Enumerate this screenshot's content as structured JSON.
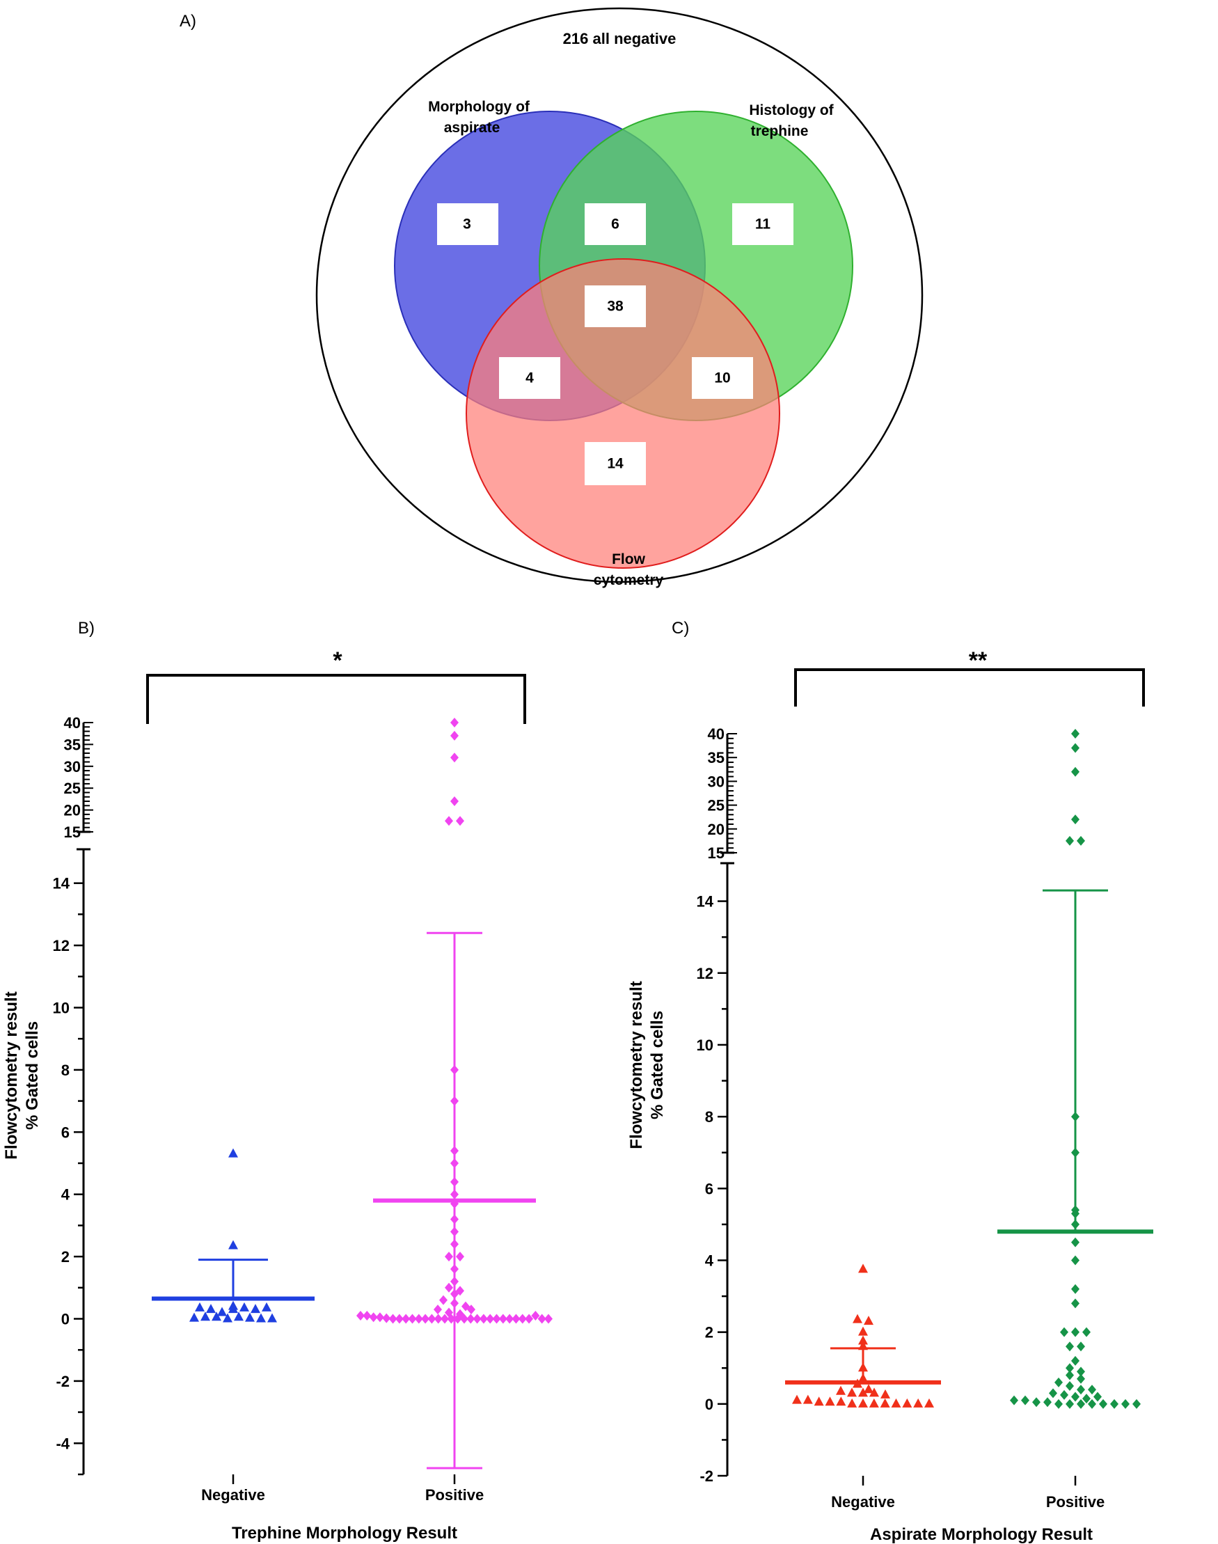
{
  "panel_a": {
    "label": "A)",
    "outer_label": "216 all negative",
    "circles": [
      {
        "name": "Morphology of aspirate",
        "label_lines": [
          "Morphology of",
          "aspirate"
        ],
        "fill": "#4a4ee0",
        "stroke": "#2a2fb8"
      },
      {
        "name": "Histology of trephine",
        "label_lines": [
          "Histology of",
          "trephine"
        ],
        "fill": "#59d35a",
        "stroke": "#2fb02f"
      },
      {
        "name": "Flow cytometry",
        "label_lines": [
          "Flow",
          "cytometry"
        ],
        "fill": "#ff7f78",
        "stroke": "#e01d1d"
      }
    ],
    "regions": [
      {
        "key": "aspirate_only",
        "value": "3"
      },
      {
        "key": "aspirate_trephine",
        "value": "6"
      },
      {
        "key": "trephine_only",
        "value": "11"
      },
      {
        "key": "all_three",
        "value": "38"
      },
      {
        "key": "aspirate_flow",
        "value": "4"
      },
      {
        "key": "trephine_flow",
        "value": "10"
      },
      {
        "key": "flow_only",
        "value": "14"
      }
    ]
  },
  "chart_data": [
    {
      "type": "scatter",
      "panel": "B)",
      "xlabel": "Trephine Morphology Result",
      "ylabel_lines": [
        "Flowcytometry result",
        "% Gated cells"
      ],
      "categories": [
        "Negative",
        "Positive"
      ],
      "significance": "*",
      "lower_axis": {
        "ylim": [
          -5,
          15
        ],
        "ticks": [
          -4,
          -2,
          0,
          2,
          4,
          6,
          8,
          10,
          12,
          14
        ]
      },
      "upper_axis": {
        "ylim": [
          15,
          40
        ],
        "ticks": [
          15,
          20,
          25,
          30,
          35,
          40
        ]
      },
      "series": [
        {
          "name": "Negative",
          "marker": "triangle",
          "color": "#1f3fe0",
          "mean": 0.65,
          "sd_upper": 1.9,
          "sd_lower": null,
          "values": [
            5.3,
            2.35,
            0.35,
            0.3,
            0.2,
            0.3,
            0.35,
            0.4,
            0.3,
            0.35,
            0.02,
            0.05,
            0.05,
            0.0,
            0.05,
            0.02,
            0.0,
            0.0
          ]
        },
        {
          "name": "Positive",
          "marker": "diamond",
          "color": "#f044f0",
          "mean": 3.8,
          "sd_upper": 12.4,
          "sd_lower": -4.8,
          "values": [
            40,
            37,
            32,
            22,
            17.5,
            17.5,
            8,
            7,
            5.4,
            5,
            4.4,
            4,
            3.7,
            3.2,
            2.8,
            2.4,
            2.0,
            2.0,
            1.6,
            1.2,
            1.0,
            0.9,
            0.8,
            0.6,
            0.5,
            0.4,
            0.3,
            0.2,
            0.15,
            0.1,
            0.1,
            0.05,
            0.05,
            0.02,
            0.0,
            0.0,
            0.0,
            0.0,
            0.0,
            0.0,
            0.0,
            0.0,
            0.0,
            0.0,
            0.0,
            0.0,
            0.0,
            0.0,
            0.0,
            0.0,
            0.0,
            0.0,
            0.0,
            0.0,
            0.0,
            0.0,
            0.3,
            0.1,
            0.0,
            0.0
          ]
        }
      ]
    },
    {
      "type": "scatter",
      "panel": "C)",
      "xlabel": "Aspirate Morphology Result",
      "ylabel_lines": [
        "Flowcytometry result",
        "% Gated cells"
      ],
      "categories": [
        "Negative",
        "Positive"
      ],
      "significance": "**",
      "lower_axis": {
        "ylim": [
          -2,
          15
        ],
        "ticks": [
          -2,
          0,
          2,
          4,
          6,
          8,
          10,
          12,
          14
        ]
      },
      "upper_axis": {
        "ylim": [
          15,
          40
        ],
        "ticks": [
          15,
          20,
          25,
          30,
          35,
          40
        ]
      },
      "series": [
        {
          "name": "Negative",
          "marker": "triangle",
          "color": "#f0301a",
          "mean": 0.6,
          "sd_upper": 1.55,
          "sd_lower": null,
          "values": [
            3.75,
            2.35,
            2.3,
            2.0,
            1.75,
            1.6,
            1.0,
            0.7,
            0.55,
            0.4,
            0.35,
            0.3,
            0.3,
            0.3,
            0.25,
            0.1,
            0.1,
            0.05,
            0.05,
            0.05,
            0.0,
            0.0,
            0.0,
            0.0,
            0.0,
            0.0,
            0.0,
            0.0
          ]
        },
        {
          "name": "Positive",
          "marker": "diamond",
          "color": "#169447",
          "mean": 4.8,
          "sd_upper": 14.3,
          "sd_lower": null,
          "values": [
            40,
            37,
            32,
            22,
            17.5,
            17.5,
            8,
            7,
            5.4,
            5.3,
            5.0,
            4.5,
            4.0,
            3.2,
            2.8,
            2.0,
            2.0,
            2.0,
            1.6,
            1.6,
            1.2,
            1.0,
            0.9,
            0.8,
            0.7,
            0.6,
            0.5,
            0.4,
            0.3,
            0.25,
            0.2,
            0.15,
            0.1,
            0.1,
            0.05,
            0.05,
            0.0,
            0.0,
            0.0,
            0.0,
            0.0,
            0.0,
            0.0,
            0.0,
            0.4,
            0.2
          ]
        }
      ]
    }
  ]
}
